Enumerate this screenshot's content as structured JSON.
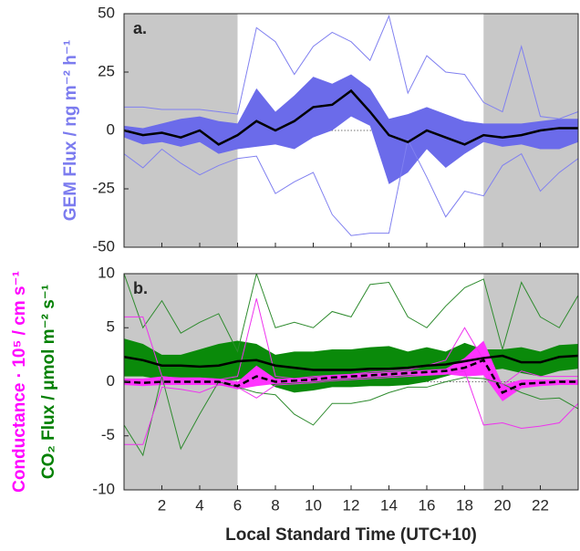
{
  "chart_data": [
    {
      "type": "line",
      "annotation": "a.",
      "ylabels": [
        {
          "text": "GEM Flux / ng m⁻² h⁻¹",
          "color": "#7b7bef"
        }
      ],
      "x": [
        0,
        1,
        2,
        3,
        4,
        5,
        6,
        7,
        8,
        9,
        10,
        11,
        12,
        13,
        14,
        15,
        16,
        17,
        18,
        19,
        20,
        21,
        22,
        23,
        24
      ],
      "xlim": [
        0,
        24
      ],
      "xticks": [
        2,
        4,
        6,
        8,
        10,
        12,
        14,
        16,
        18,
        20,
        22
      ],
      "show_xtick_labels": false,
      "ylim": [
        -50,
        50
      ],
      "yticks": [
        -50,
        -25,
        0,
        25,
        50
      ],
      "zero_line": true,
      "shaded_ranges": [
        [
          0,
          6
        ],
        [
          19,
          24
        ]
      ],
      "shade_color": "#c8c8c8",
      "bands": [
        {
          "color": "#6b6bea",
          "upper": [
            2,
            1,
            3,
            5,
            6,
            4,
            3,
            18,
            8,
            15,
            23,
            20,
            24,
            18,
            5,
            7,
            10,
            7,
            4,
            3,
            3,
            3,
            4,
            5,
            5
          ],
          "lower": [
            -3,
            -6,
            -5,
            -7,
            -5,
            -10,
            -8,
            -7,
            -6,
            -8,
            -3,
            0,
            6,
            2,
            -23,
            -18,
            -8,
            -16,
            -10,
            -5,
            -7,
            -6,
            -8,
            -8,
            -5
          ]
        }
      ],
      "series": [
        {
          "color": "#8080f0",
          "style": "thin",
          "values": [
            10,
            10,
            9,
            9,
            9,
            8,
            7,
            44,
            38,
            24,
            36,
            42,
            38,
            30,
            49,
            16,
            32,
            25,
            24,
            12,
            8,
            36,
            6,
            5,
            8
          ]
        },
        {
          "color": "#8080f0",
          "style": "thin",
          "values": [
            -10,
            -16,
            -8,
            -14,
            -19,
            -15,
            -12,
            -11,
            -27,
            -22,
            -18,
            -36,
            -45,
            -44,
            -44,
            -4,
            -20,
            -37,
            -26,
            -28,
            -15,
            -10,
            -26,
            -18,
            -12
          ]
        },
        {
          "color": "#000000",
          "style": "solid",
          "values": [
            0,
            -2,
            -1,
            -3,
            0,
            -6,
            -2,
            4,
            0,
            4,
            10,
            11,
            17,
            8,
            -2,
            -5,
            0,
            -3,
            -6,
            -2,
            -3,
            -2,
            0,
            1,
            1
          ]
        }
      ]
    },
    {
      "type": "line",
      "annotation": "b.",
      "ylabels": [
        {
          "text": "Conductance · 10⁵ / cm s⁻¹",
          "color": "#ff00ff"
        },
        {
          "text": "CO₂ Flux / μmol m⁻² s⁻¹",
          "color": "#008000"
        }
      ],
      "xlabel": "Local Standard Time (UTC+10)",
      "x": [
        0,
        1,
        2,
        3,
        4,
        5,
        6,
        7,
        8,
        9,
        10,
        11,
        12,
        13,
        14,
        15,
        16,
        17,
        18,
        19,
        20,
        21,
        22,
        23,
        24
      ],
      "xlim": [
        0,
        24
      ],
      "xticks": [
        2,
        4,
        6,
        8,
        10,
        12,
        14,
        16,
        18,
        20,
        22
      ],
      "show_xtick_labels": true,
      "ylim": [
        -10,
        10
      ],
      "yticks": [
        -10,
        -5,
        0,
        5,
        10
      ],
      "zero_line": true,
      "shaded_ranges": [
        [
          0,
          6
        ],
        [
          19,
          24
        ]
      ],
      "shade_color": "#c8c8c8",
      "bands": [
        {
          "color": "#0a8a0a",
          "upper": [
            4,
            3.5,
            2.5,
            2.5,
            3,
            3.5,
            3.8,
            3.5,
            2.5,
            2.8,
            2.8,
            3,
            3,
            3.2,
            3.3,
            2.8,
            3.2,
            2.8,
            3.6,
            3,
            3,
            3.2,
            2.8,
            3.4,
            3.5
          ],
          "lower": [
            0.5,
            0.5,
            0.2,
            0,
            -0.1,
            0,
            0.2,
            0.5,
            -0.5,
            -1,
            -0.8,
            -0.5,
            -0.5,
            -0.4,
            -0.4,
            -0.3,
            0,
            0.5,
            1,
            1,
            1.2,
            0.8,
            0.5,
            1,
            1.2
          ]
        },
        {
          "color": "#ff33ff",
          "upper": [
            0.3,
            0.3,
            0.5,
            0.4,
            0.4,
            0.3,
            0,
            1.5,
            0.3,
            0.3,
            0.4,
            0.6,
            0.7,
            0.8,
            0.9,
            1,
            1.1,
            1.2,
            2.2,
            3.8,
            -0.3,
            0.2,
            0.2,
            0.2,
            0.2
          ],
          "lower": [
            -0.3,
            -0.4,
            -0.3,
            -0.3,
            -0.3,
            -0.3,
            -0.7,
            -0.4,
            -0.2,
            -0.1,
            0,
            0.2,
            0.3,
            0.4,
            0.5,
            0.6,
            0.6,
            0.7,
            0.5,
            0.6,
            -1.8,
            -0.6,
            -0.4,
            -0.3,
            -0.3
          ]
        }
      ],
      "series": [
        {
          "color": "#2e8b2e",
          "style": "thin",
          "values": [
            10,
            5,
            7.5,
            4.5,
            5.5,
            6.3,
            2.8,
            10,
            5,
            5.5,
            5,
            6.5,
            6,
            9,
            9.2,
            6,
            5,
            7,
            8.7,
            9.5,
            3,
            9.2,
            6,
            5,
            8
          ]
        },
        {
          "color": "#2e8b2e",
          "style": "thin",
          "values": [
            -4,
            -6.8,
            0.5,
            -6.2,
            -3,
            0,
            -0.5,
            -1,
            -1.2,
            -3,
            -4,
            -2,
            -2,
            -1.7,
            -1,
            -0.5,
            -0.5,
            0,
            0.4,
            0.3,
            -0.2,
            -1,
            -1.6,
            -1.5,
            -2.5
          ]
        },
        {
          "color": "#ee33ee",
          "style": "thin",
          "values": [
            6,
            6,
            0.5,
            0.3,
            0.2,
            0.2,
            0.5,
            7.7,
            0.5,
            0.3,
            0.5,
            0.6,
            0.7,
            0.9,
            1,
            1.1,
            1.5,
            2,
            5,
            2,
            -0.3,
            1,
            0.5,
            0.5,
            0.5
          ]
        },
        {
          "color": "#ee33ee",
          "style": "thin",
          "values": [
            -5.8,
            -5.8,
            -0.5,
            -0.7,
            -1,
            -0.3,
            -0.5,
            -1.5,
            -0.3,
            -0.2,
            -0.1,
            0.1,
            0.2,
            0.3,
            0.4,
            0.5,
            0.6,
            0.7,
            1,
            -4,
            -3.8,
            -4.3,
            -4.1,
            -3.8,
            -2
          ]
        },
        {
          "color": "#000000",
          "style": "solid",
          "values": [
            2.3,
            2,
            1.5,
            1.5,
            1.4,
            1.5,
            1.9,
            2,
            1.5,
            1.3,
            1.1,
            1.1,
            1.1,
            1.2,
            1.2,
            1.3,
            1.5,
            1.6,
            1.9,
            2.2,
            2.4,
            1.8,
            1.8,
            2.3,
            2.4
          ]
        },
        {
          "color": "#000000",
          "style": "dashed",
          "values": [
            0,
            -0.1,
            0,
            0,
            0,
            0,
            -0.4,
            0.5,
            0,
            0.1,
            0.2,
            0.4,
            0.5,
            0.6,
            0.7,
            0.8,
            0.9,
            1,
            1.3,
            2,
            -1,
            -0.2,
            -0.1,
            0,
            0
          ]
        }
      ]
    }
  ]
}
